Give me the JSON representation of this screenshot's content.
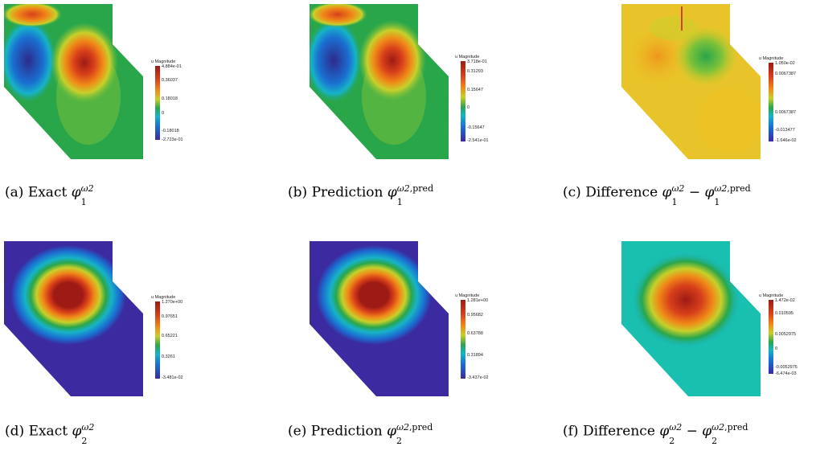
{
  "colors": {
    "map": [
      "#3b2aa0",
      "#2e2a8c",
      "#1a6fd1",
      "#17b3c8",
      "#19a884",
      "#2aa64a",
      "#7cc23a",
      "#c8d02a",
      "#f0c020",
      "#f08a18",
      "#d8401a",
      "#9e1a14"
    ]
  },
  "panels": [
    {
      "id": "a",
      "colorbar": {
        "title": "u Magnitude",
        "ticks": [
          "4.884e-01",
          "0.36037",
          "0.18018",
          "0",
          "-0.18018",
          "-2.723e-01"
        ]
      },
      "caption": {
        "tag": "(a)",
        "text": "Exact",
        "symbol": "φ",
        "sub": "1",
        "sup": "ω2",
        "sup_extra": ""
      }
    },
    {
      "id": "b",
      "colorbar": {
        "title": "u Magnitude",
        "ticks": [
          "3.718e-01",
          "0.31293",
          "0.15647",
          "0",
          "-0.15647",
          "-2.541e-01"
        ]
      },
      "caption": {
        "tag": "(b)",
        "text": "Prediction",
        "symbol": "φ",
        "sub": "1",
        "sup": "ω2",
        "sup_extra": ",pred"
      }
    },
    {
      "id": "c",
      "colorbar": {
        "title": "u Magnitude",
        "ticks": [
          "1.050e-02",
          "0.0067387",
          "0.0067387",
          "-0.013477",
          "-1.646e-02"
        ]
      },
      "caption": {
        "tag": "(c)",
        "text": "Difference",
        "symbol": "φ",
        "sub": "1",
        "sup": "ω2",
        "sup_extra": "",
        "minus": "−",
        "symbol2": "φ",
        "sub2": "1",
        "sup2": "ω2",
        "sup2_extra": ",pred"
      }
    },
    {
      "id": "d",
      "colorbar": {
        "title": "u Magnitude",
        "ticks": [
          "1.270e+00",
          "0.97651",
          "0.65221",
          "0.3261",
          "-3.481e-02"
        ]
      },
      "caption": {
        "tag": "(d)",
        "text": "Exact",
        "symbol": "φ",
        "sub": "2",
        "sup": "ω2",
        "sup_extra": ""
      }
    },
    {
      "id": "e",
      "colorbar": {
        "title": "u Magnitude",
        "ticks": [
          "1.281e+00",
          "0.95682",
          "0.63788",
          "0.31894",
          "-3.437e-02"
        ]
      },
      "caption": {
        "tag": "(e)",
        "text": "Prediction",
        "symbol": "φ",
        "sub": "2",
        "sup": "ω2",
        "sup_extra": ",pred"
      }
    },
    {
      "id": "f",
      "colorbar": {
        "title": "u Magnitude",
        "ticks": [
          "1.472e-02",
          "0.010595",
          "0.0052975",
          "0",
          "-0.0052975",
          "-6.474e-03"
        ]
      },
      "caption": {
        "tag": "(f)",
        "text": "Difference",
        "symbol": "φ",
        "sub": "2",
        "sup": "ω2",
        "sup_extra": "",
        "minus": "−",
        "symbol2": "φ",
        "sub2": "2",
        "sup2": "ω2",
        "sup2_extra": ",pred"
      }
    }
  ]
}
